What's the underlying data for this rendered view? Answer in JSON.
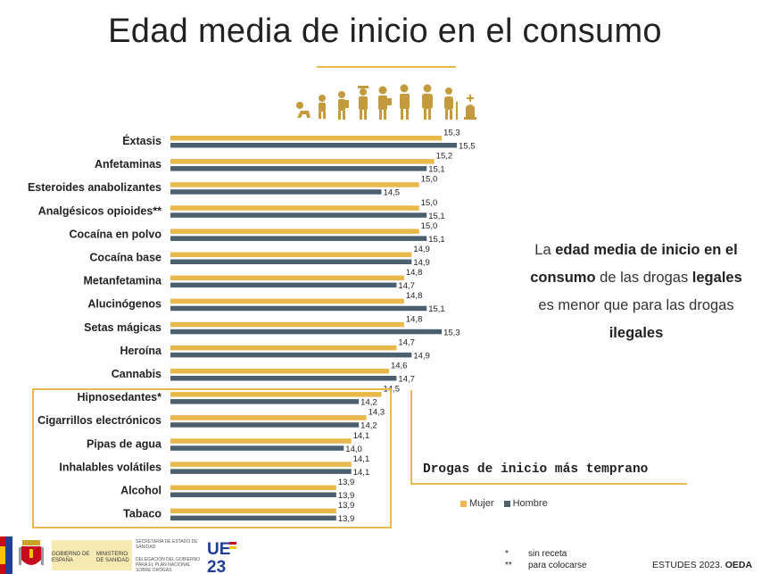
{
  "title": "Edad media de inicio en el consumo",
  "colors": {
    "mujer": "#e8b84a",
    "hombre": "#4b5f6e",
    "accent": "#e8b84a",
    "icons": "#c49a3e"
  },
  "icons": [
    "baby-icon",
    "toddler-icon",
    "child-backpack-icon",
    "student-icon",
    "teen-icon",
    "adult-icon",
    "middle-aged-icon",
    "elder-cane-icon",
    "gravestone-icon"
  ],
  "chart_data": {
    "type": "bar",
    "orientation": "horizontal",
    "categories": [
      "Éxtasis",
      "Anfetaminas",
      "Esteroides anabolizantes",
      "Analgésicos opioides**",
      "Cocaína en polvo",
      "Cocaína base",
      "Metanfetamina",
      "Alucinógenos",
      "Setas mágicas",
      "Heroína",
      "Cannabis",
      "Hipnosedantes*",
      "Cigarrillos electrónicos",
      "Pipas de agua",
      "Inhalables volátiles",
      "Alcohol",
      "Tabaco"
    ],
    "series": [
      {
        "name": "Mujer",
        "values": [
          15.3,
          15.2,
          15.0,
          15.0,
          15.0,
          14.9,
          14.8,
          14.8,
          14.8,
          14.7,
          14.6,
          14.5,
          14.3,
          14.1,
          14.1,
          13.9,
          13.9
        ]
      },
      {
        "name": "Hombre",
        "values": [
          15.5,
          15.1,
          14.5,
          15.1,
          15.1,
          14.9,
          14.7,
          15.1,
          15.3,
          14.9,
          14.7,
          14.2,
          14.2,
          14.0,
          14.1,
          13.9,
          13.9
        ]
      }
    ],
    "value_labels": {
      "Mujer": [
        "15,3",
        "15,2",
        "15,0",
        "15,0",
        "15,0",
        "14,9",
        "14,8",
        "14,8",
        "14,8",
        "14,7",
        "14,6",
        "14,5",
        "14,3",
        "14,1",
        "14,1",
        "13,9",
        "13,9"
      ],
      "Hombre": [
        "15,5",
        "15,1",
        "14,5",
        "15,1",
        "15,1",
        "14,9",
        "14,7",
        "15,1",
        "15,3",
        "14,9",
        "14,7",
        "14,2",
        "14,2",
        "14,0",
        "14,1",
        "13,9",
        "13,9"
      ]
    },
    "xlim": [
      11.7,
      15.5
    ],
    "highlighted_categories": [
      "Hipnosedantes*",
      "Cigarrillos electrónicos",
      "Pipas de agua",
      "Inhalables volátiles",
      "Alcohol",
      "Tabaco"
    ],
    "legend": "bottom"
  },
  "callout": {
    "p1": "La ",
    "b1": "edad media de inicio en el consumo",
    "p2": " de las drogas ",
    "b2": "legales",
    "p3": " es menor que para las drogas ",
    "b3": "ilegales"
  },
  "sidebar_title": "Drogas de inicio más temprano",
  "legend": {
    "mujer": "Mujer",
    "hombre": "Hombre"
  },
  "footnotes": [
    {
      "symbol": "*",
      "text": "sin receta"
    },
    {
      "symbol": "**",
      "text": "para colocarse"
    }
  ],
  "source": {
    "prefix": "ESTUDES 2023. ",
    "org": "OEDA"
  },
  "footer": {
    "gov_label": "GOBIERNO DE ESPAÑA",
    "ministry_label": "MINISTERIO DE SANIDAD",
    "secretariat": "SECRETARÍA DE ESTADO DE SANIDAD",
    "delegation": "DELEGACIÓN DEL GOBIERNO PARA EL PLAN NACIONAL SOBRE DROGAS",
    "ue_top": "UE",
    "ue_bottom": "23"
  }
}
